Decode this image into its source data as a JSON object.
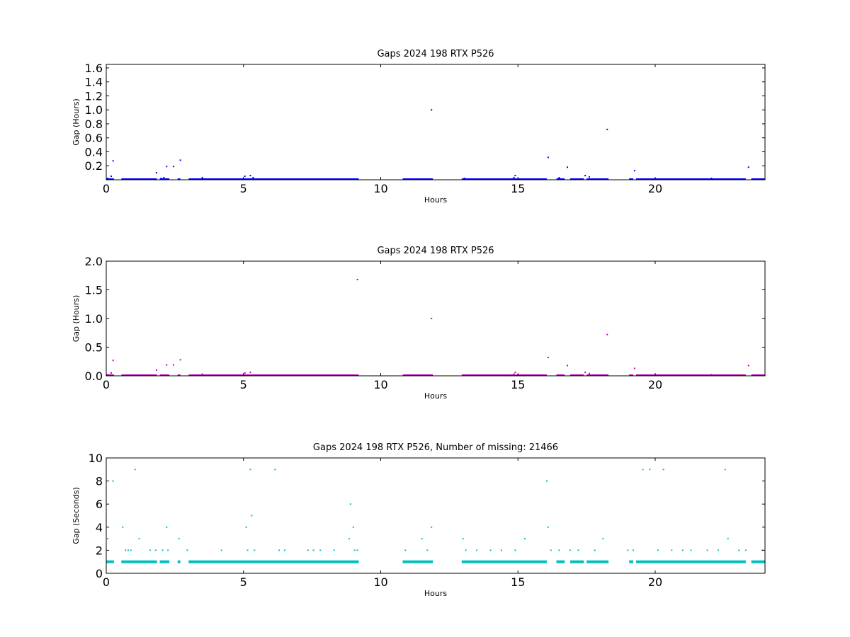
{
  "chart_data": [
    {
      "type": "scatter",
      "title": "Gaps 2024 198 RTX  P526",
      "xlabel": "Hours",
      "ylabel": "Gap (Hours)",
      "xlim": [
        0,
        24
      ],
      "ylim": [
        0,
        1.65
      ],
      "xticks": [
        0,
        5,
        10,
        15,
        20
      ],
      "yticks": [
        0.2,
        0.4,
        0.6,
        0.8,
        1.0,
        1.2,
        1.4,
        1.6
      ],
      "ytick_labels": [
        "0.2",
        "0.4",
        "0.6",
        "0.8",
        "1.0",
        "1.2",
        "1.4",
        "1.6"
      ],
      "color": "#0000ff",
      "grid": false,
      "baseline_value": 0.0003,
      "baseline_ranges": [
        [
          0.0,
          0.28
        ],
        [
          0.55,
          1.85
        ],
        [
          1.95,
          2.3
        ],
        [
          2.6,
          2.7
        ],
        [
          3.0,
          9.2
        ],
        [
          10.8,
          11.9
        ],
        [
          12.95,
          16.05
        ],
        [
          16.4,
          16.7
        ],
        [
          16.9,
          17.4
        ],
        [
          17.5,
          18.3
        ],
        [
          19.05,
          19.2
        ],
        [
          19.3,
          23.3
        ],
        [
          23.5,
          24.0
        ]
      ],
      "points": [
        {
          "x": 0.05,
          "y": 0.02
        },
        {
          "x": 0.18,
          "y": 0.05
        },
        {
          "x": 0.25,
          "y": 0.27
        },
        {
          "x": 1.83,
          "y": 0.1
        },
        {
          "x": 2.0,
          "y": 0.02
        },
        {
          "x": 2.1,
          "y": 0.03
        },
        {
          "x": 2.2,
          "y": 0.19
        },
        {
          "x": 2.45,
          "y": 0.19
        },
        {
          "x": 2.7,
          "y": 0.28
        },
        {
          "x": 3.5,
          "y": 0.03
        },
        {
          "x": 5.05,
          "y": 0.05
        },
        {
          "x": 5.25,
          "y": 0.06
        },
        {
          "x": 5.35,
          "y": 0.03
        },
        {
          "x": 11.85,
          "y": 1.0
        },
        {
          "x": 13.05,
          "y": 0.02
        },
        {
          "x": 14.85,
          "y": 0.03
        },
        {
          "x": 14.9,
          "y": 0.06
        },
        {
          "x": 16.1,
          "y": 0.32
        },
        {
          "x": 16.5,
          "y": 0.03
        },
        {
          "x": 16.8,
          "y": 0.18
        },
        {
          "x": 17.45,
          "y": 0.06
        },
        {
          "x": 17.6,
          "y": 0.04
        },
        {
          "x": 18.25,
          "y": 0.72
        },
        {
          "x": 19.25,
          "y": 0.13
        },
        {
          "x": 22.05,
          "y": 0.02
        },
        {
          "x": 23.4,
          "y": 0.18
        }
      ]
    },
    {
      "type": "scatter",
      "title": "Gaps 2024 198 RTX  P526",
      "xlabel": "Hours",
      "ylabel": "Gap (Hours)",
      "xlim": [
        0,
        24
      ],
      "ylim": [
        0,
        2.0
      ],
      "xticks": [
        0,
        5,
        10,
        15,
        20
      ],
      "yticks": [
        0.0,
        0.5,
        1.0,
        1.5,
        2.0
      ],
      "ytick_labels": [
        "0.0",
        "0.5",
        "1.0",
        "1.5",
        "2.0"
      ],
      "color": "#bf00bf",
      "grid": false,
      "baseline_value": 0.0003,
      "baseline_ranges": [
        [
          0.0,
          0.28
        ],
        [
          0.55,
          1.85
        ],
        [
          1.95,
          2.3
        ],
        [
          2.6,
          2.7
        ],
        [
          3.0,
          9.2
        ],
        [
          10.8,
          11.9
        ],
        [
          12.95,
          16.05
        ],
        [
          16.4,
          16.7
        ],
        [
          16.9,
          17.4
        ],
        [
          17.5,
          18.3
        ],
        [
          19.05,
          19.2
        ],
        [
          19.3,
          23.3
        ],
        [
          23.5,
          24.0
        ]
      ],
      "points": [
        {
          "x": 0.05,
          "y": 0.02
        },
        {
          "x": 0.18,
          "y": 0.05
        },
        {
          "x": 0.25,
          "y": 0.27
        },
        {
          "x": 1.83,
          "y": 0.1
        },
        {
          "x": 2.2,
          "y": 0.19
        },
        {
          "x": 2.45,
          "y": 0.19
        },
        {
          "x": 2.7,
          "y": 0.28
        },
        {
          "x": 3.5,
          "y": 0.03
        },
        {
          "x": 5.05,
          "y": 0.05
        },
        {
          "x": 5.25,
          "y": 0.06
        },
        {
          "x": 9.15,
          "y": 1.68
        },
        {
          "x": 11.85,
          "y": 1.0
        },
        {
          "x": 14.85,
          "y": 0.03
        },
        {
          "x": 14.9,
          "y": 0.06
        },
        {
          "x": 16.1,
          "y": 0.32
        },
        {
          "x": 16.8,
          "y": 0.18
        },
        {
          "x": 17.45,
          "y": 0.06
        },
        {
          "x": 17.6,
          "y": 0.04
        },
        {
          "x": 18.25,
          "y": 0.72
        },
        {
          "x": 19.25,
          "y": 0.13
        },
        {
          "x": 22.05,
          "y": 0.02
        },
        {
          "x": 23.4,
          "y": 0.18
        }
      ]
    },
    {
      "type": "scatter",
      "title": "Gaps 2024 198 RTX  P526, Number of missing: 21466",
      "xlabel": "Hours",
      "ylabel": "Gap (Seconds)",
      "xlim": [
        0,
        24
      ],
      "ylim": [
        0,
        10
      ],
      "xticks": [
        0,
        5,
        10,
        15,
        20
      ],
      "yticks": [
        0,
        2,
        4,
        6,
        8,
        10
      ],
      "ytick_labels": [
        "0",
        "2",
        "4",
        "6",
        "8",
        "10"
      ],
      "color": "#00bfbf",
      "grid": false,
      "baseline_value": 1,
      "baseline_ranges": [
        [
          0.0,
          0.28
        ],
        [
          0.55,
          1.85
        ],
        [
          1.95,
          2.3
        ],
        [
          2.6,
          2.7
        ],
        [
          3.0,
          9.2
        ],
        [
          10.8,
          11.9
        ],
        [
          12.95,
          16.05
        ],
        [
          16.4,
          16.7
        ],
        [
          16.9,
          17.4
        ],
        [
          17.5,
          18.3
        ],
        [
          19.05,
          19.2
        ],
        [
          19.3,
          23.3
        ],
        [
          23.5,
          24.0
        ]
      ],
      "points": [
        {
          "x": 0.05,
          "y": 3
        },
        {
          "x": 0.25,
          "y": 8
        },
        {
          "x": 0.6,
          "y": 4
        },
        {
          "x": 0.7,
          "y": 2
        },
        {
          "x": 0.8,
          "y": 2
        },
        {
          "x": 0.9,
          "y": 2
        },
        {
          "x": 1.05,
          "y": 9
        },
        {
          "x": 1.2,
          "y": 3
        },
        {
          "x": 1.6,
          "y": 2
        },
        {
          "x": 1.8,
          "y": 2
        },
        {
          "x": 2.05,
          "y": 2
        },
        {
          "x": 2.2,
          "y": 4
        },
        {
          "x": 2.25,
          "y": 2
        },
        {
          "x": 2.65,
          "y": 3
        },
        {
          "x": 2.95,
          "y": 2
        },
        {
          "x": 4.2,
          "y": 2
        },
        {
          "x": 5.1,
          "y": 4
        },
        {
          "x": 5.15,
          "y": 2
        },
        {
          "x": 5.25,
          "y": 9
        },
        {
          "x": 5.3,
          "y": 5
        },
        {
          "x": 5.4,
          "y": 2
        },
        {
          "x": 6.15,
          "y": 9
        },
        {
          "x": 6.3,
          "y": 2
        },
        {
          "x": 6.5,
          "y": 2
        },
        {
          "x": 7.35,
          "y": 2
        },
        {
          "x": 7.55,
          "y": 2
        },
        {
          "x": 7.8,
          "y": 2
        },
        {
          "x": 8.3,
          "y": 2
        },
        {
          "x": 8.85,
          "y": 3
        },
        {
          "x": 8.9,
          "y": 6
        },
        {
          "x": 9.0,
          "y": 4
        },
        {
          "x": 9.05,
          "y": 2
        },
        {
          "x": 9.15,
          "y": 2
        },
        {
          "x": 10.9,
          "y": 2
        },
        {
          "x": 11.5,
          "y": 3
        },
        {
          "x": 11.7,
          "y": 2
        },
        {
          "x": 11.85,
          "y": 4
        },
        {
          "x": 13.0,
          "y": 3
        },
        {
          "x": 13.1,
          "y": 2
        },
        {
          "x": 13.5,
          "y": 2
        },
        {
          "x": 14.0,
          "y": 2
        },
        {
          "x": 14.4,
          "y": 2
        },
        {
          "x": 14.9,
          "y": 2
        },
        {
          "x": 15.25,
          "y": 3
        },
        {
          "x": 16.05,
          "y": 8
        },
        {
          "x": 16.1,
          "y": 4
        },
        {
          "x": 16.2,
          "y": 2
        },
        {
          "x": 16.5,
          "y": 2
        },
        {
          "x": 16.9,
          "y": 2
        },
        {
          "x": 17.2,
          "y": 2
        },
        {
          "x": 17.8,
          "y": 2
        },
        {
          "x": 18.1,
          "y": 3
        },
        {
          "x": 19.0,
          "y": 2
        },
        {
          "x": 19.2,
          "y": 2
        },
        {
          "x": 19.55,
          "y": 9
        },
        {
          "x": 19.8,
          "y": 9
        },
        {
          "x": 20.1,
          "y": 2
        },
        {
          "x": 20.3,
          "y": 9
        },
        {
          "x": 20.6,
          "y": 2
        },
        {
          "x": 21.0,
          "y": 2
        },
        {
          "x": 21.3,
          "y": 2
        },
        {
          "x": 21.9,
          "y": 2
        },
        {
          "x": 22.3,
          "y": 2
        },
        {
          "x": 22.55,
          "y": 9
        },
        {
          "x": 22.65,
          "y": 3
        },
        {
          "x": 23.05,
          "y": 2
        },
        {
          "x": 23.3,
          "y": 2
        },
        {
          "x": 23.9,
          "y": 2
        }
      ]
    }
  ]
}
